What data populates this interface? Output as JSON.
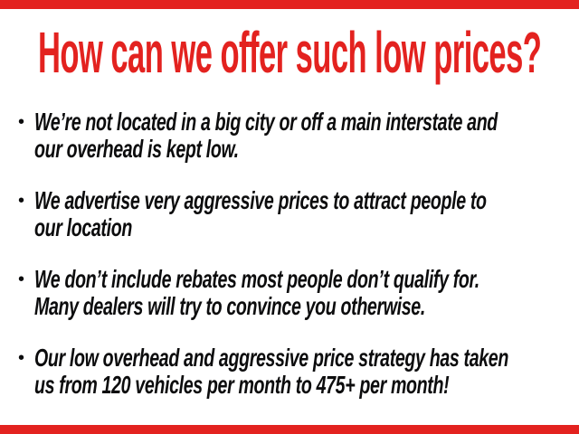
{
  "slide": {
    "title": "How can we offer such low prices?",
    "accent_color": "#e3221f",
    "title_color": "#e3221f",
    "body_text_color": "#0c0c0d",
    "bullet_glyph": "•"
  },
  "bullets": [
    {
      "lines": [
        "We’re not located in a big city or off a main interstate and",
        "our overhead is kept low."
      ]
    },
    {
      "lines": [
        "We advertise very aggressive prices to attract people to",
        "our location"
      ]
    },
    {
      "lines": [
        "We don’t include rebates most people don’t qualify for.",
        "Many dealers will try to convince you otherwise."
      ]
    },
    {
      "lines": [
        "Our low overhead and aggressive price strategy has taken",
        "us from 120 vehicles per month to 475+ per month!"
      ]
    }
  ]
}
